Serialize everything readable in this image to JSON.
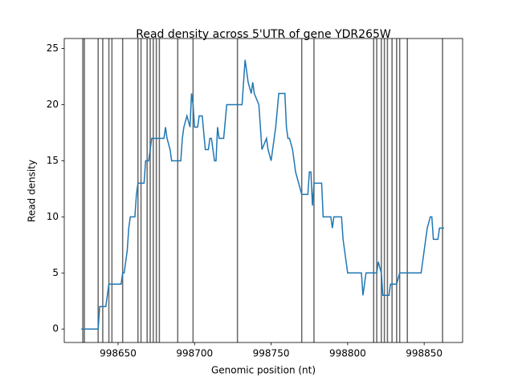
{
  "chart_data": {
    "type": "line",
    "title": "Read density across 5'UTR of gene YDR265W",
    "x_label": "Genomic position (nt)",
    "y_label": "Read density",
    "x": [
      998626,
      998637,
      998638,
      998642,
      998643,
      998644,
      998652,
      998653,
      998654,
      998655,
      998656,
      998657,
      998658,
      998661,
      998662,
      998663,
      998667,
      998668,
      998670,
      998671,
      998672,
      998680,
      998681,
      998682,
      998684,
      998685,
      998691,
      998692,
      998693,
      998695,
      998697,
      998698,
      998699,
      998700,
      998702,
      998703,
      998705,
      998707,
      998709,
      998710,
      998711,
      998713,
      998714,
      998715,
      998716,
      998719,
      998721,
      998731,
      998733,
      998735,
      998737,
      998738,
      998739,
      998742,
      998743,
      998744,
      998747,
      998748,
      998750,
      998752,
      998753,
      998755,
      998759,
      998760,
      998761,
      998762,
      998764,
      998766,
      998768,
      998770,
      998774,
      998775,
      998776,
      998777,
      998778,
      998783,
      998784,
      998789,
      998790,
      998791,
      998796,
      998797,
      998798,
      998800,
      998809,
      998810,
      998812,
      998819,
      998820,
      998822,
      998823,
      998827,
      998828,
      998832,
      998834,
      998848,
      998850,
      998852,
      998854,
      998855,
      998856,
      998859,
      998860,
      998863
    ],
    "series": [
      {
        "color": "#1f77b4",
        "values": [
          0,
          0,
          2,
          2,
          3,
          4,
          4,
          5,
          5,
          6,
          7,
          9,
          10,
          10,
          12,
          13,
          13,
          15,
          15,
          16,
          17,
          17,
          18,
          17,
          16,
          15,
          15,
          17,
          18,
          19,
          18,
          21,
          20,
          18,
          18,
          19,
          19,
          16,
          16,
          17,
          17,
          15,
          15,
          18,
          17,
          17,
          20,
          20,
          24,
          22,
          21,
          22,
          21,
          20,
          18,
          16,
          17,
          16,
          15,
          17,
          18,
          21,
          21,
          18,
          17,
          17,
          16,
          14,
          13,
          12,
          12,
          14,
          14,
          11,
          13,
          13,
          10,
          10,
          9,
          10,
          10,
          8,
          7,
          5,
          5,
          3,
          5,
          5,
          6,
          5,
          3,
          3,
          4,
          4,
          5,
          5,
          7,
          9,
          10,
          10,
          8,
          8,
          9,
          9
        ]
      }
    ],
    "vlines": [
      998627,
      998628,
      998637,
      998640,
      998644,
      998646,
      998653,
      998663,
      998665,
      998669,
      998671,
      998673,
      998675,
      998677,
      998689,
      998699,
      998728,
      998770,
      998778,
      998817,
      998819,
      998822,
      998824,
      998826,
      998829,
      998832,
      998834,
      998839,
      998862
    ],
    "vline_color": "#666666",
    "xlim": [
      998614.85,
      998875.1
    ],
    "xticks": [
      998650,
      998700,
      998750,
      998800,
      998850
    ],
    "ylim": [
      -1.2,
      25.9
    ],
    "yticks": [
      0,
      5,
      10,
      15,
      20,
      25
    ]
  }
}
